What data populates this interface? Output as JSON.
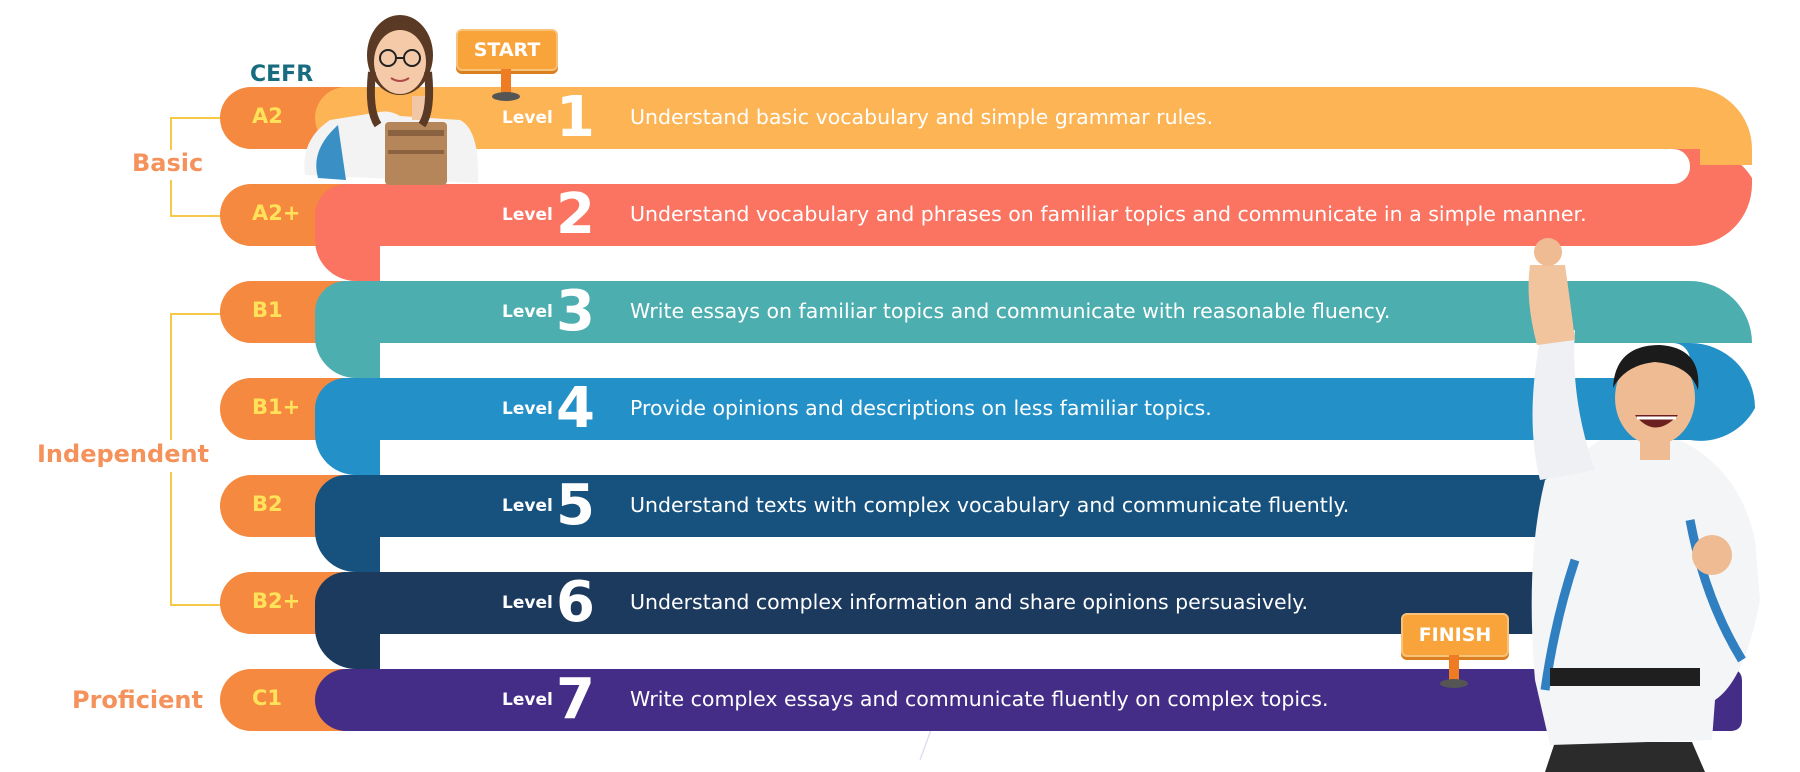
{
  "cefr_heading": "CEFR",
  "groups": {
    "basic": "Basic",
    "independent": "Independent",
    "proficient": "Proficient"
  },
  "start_label": "START",
  "finish_label": "FINISH",
  "level_word": "Level",
  "levels": [
    {
      "cefr": "A2",
      "number": "1",
      "description": "Understand basic vocabulary and simple grammar rules.",
      "color": "#fdb454"
    },
    {
      "cefr": "A2+",
      "number": "2",
      "description": "Understand vocabulary and phrases on familiar topics and communicate in a simple manner.",
      "color": "#fb7461"
    },
    {
      "cefr": "B1",
      "number": "3",
      "description": "Write essays on familiar topics and communicate with reasonable fluency.",
      "color": "#4daeb0"
    },
    {
      "cefr": "B1+",
      "number": "4",
      "description": "Provide opinions and descriptions on less familiar topics.",
      "color": "#2390c8"
    },
    {
      "cefr": "B2",
      "number": "5",
      "description": "Understand texts with complex vocabulary and communicate fluently.",
      "color": "#17527e"
    },
    {
      "cefr": "B2+",
      "number": "6",
      "description": "Understand complex information and share opinions persuasively.",
      "color": "#1b3a5e"
    },
    {
      "cefr": "C1",
      "number": "7",
      "description": "Write complex essays and communicate fluently on complex topics.",
      "color": "#432d87"
    }
  ],
  "colors": {
    "cefr_tab": "#f4893f",
    "cefr_code": "#ffe25a",
    "group_label": "#f5925b",
    "bracket": "#f7c948",
    "cefr_heading": "#176c80"
  }
}
